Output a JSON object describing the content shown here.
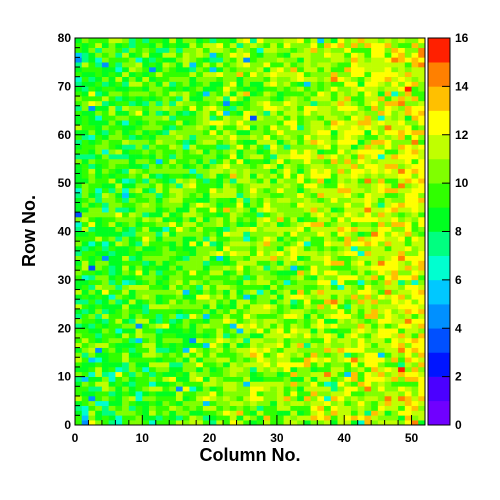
{
  "chart_data": {
    "type": "heatmap",
    "title": "",
    "xlabel": "Column No.",
    "ylabel": "Row No.",
    "x_range": [
      0,
      52
    ],
    "y_range": [
      0,
      80
    ],
    "x_ticks": [
      0,
      10,
      20,
      30,
      40,
      50
    ],
    "y_ticks": [
      0,
      10,
      20,
      30,
      40,
      50,
      60,
      70,
      80
    ],
    "n_columns": 52,
    "n_rows": 80,
    "z_range": [
      0,
      16
    ],
    "z_ticks": [
      0,
      2,
      4,
      6,
      8,
      10,
      12,
      14,
      16
    ],
    "colorbar": {
      "levels": 16,
      "colors": [
        "#7000ff",
        "#4b00ff",
        "#0015ff",
        "#0050ff",
        "#0090ff",
        "#00c8ff",
        "#00ffd0",
        "#00ff80",
        "#00ff20",
        "#30ff00",
        "#80ff00",
        "#c0ff00",
        "#ffff00",
        "#ffc000",
        "#ff8000",
        "#ff2000"
      ]
    },
    "trend": "mean cell value rises from about 9 at column 0 to about 12 at column 52"
  }
}
